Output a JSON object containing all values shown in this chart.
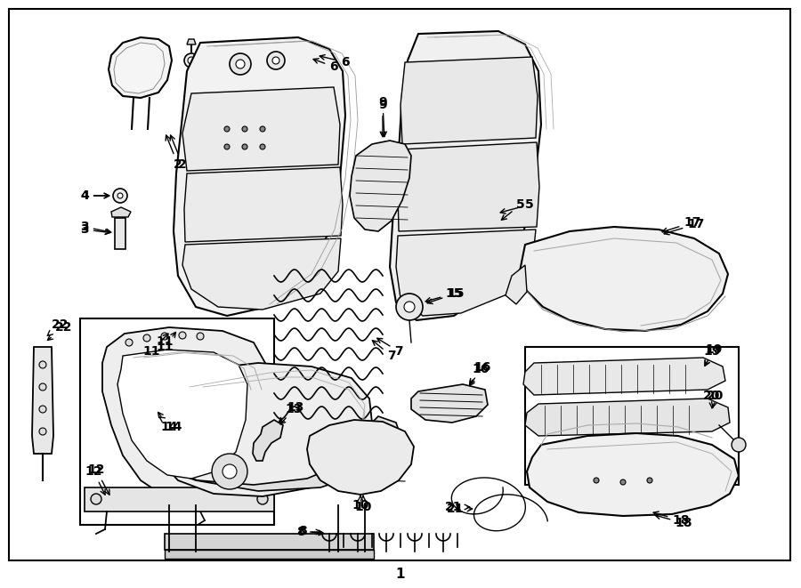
{
  "background_color": "#ffffff",
  "line_color": "#000000",
  "text_color": "#000000",
  "fig_width": 9.0,
  "fig_height": 6.61,
  "dpi": 100,
  "bottom_label": "1"
}
